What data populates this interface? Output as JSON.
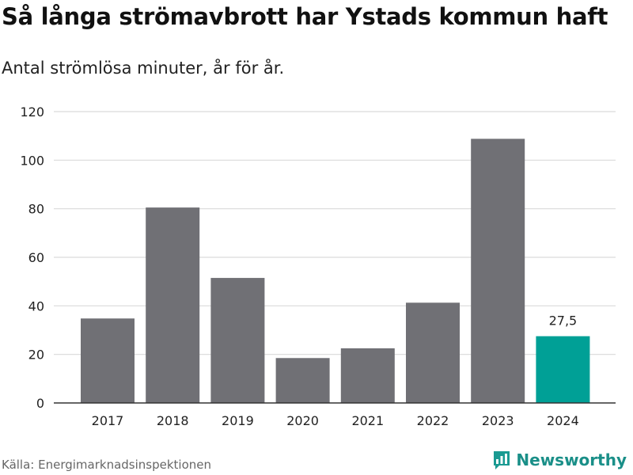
{
  "title": "Så långa strömavbrott har Ystads kommun haft",
  "subtitle": "Antal strömlösa minuter, år för år.",
  "source": "Källa: Energimarknadsinspektionen",
  "brand": {
    "name": "Newsworthy",
    "icon": "newsworthy-logo-icon",
    "color": "#1a9a92"
  },
  "colors": {
    "default_bar": "#707075",
    "highlight_bar": "#00a096",
    "grid": "#d9d9d9",
    "axis": "#333333"
  },
  "chart_data": {
    "type": "bar",
    "categories": [
      "2017",
      "2018",
      "2019",
      "2020",
      "2021",
      "2022",
      "2023",
      "2024"
    ],
    "values": [
      34.8,
      80.5,
      51.5,
      18.5,
      22.5,
      41.3,
      108.8,
      27.5
    ],
    "highlight_index": 7,
    "data_labels": [
      {
        "index": 7,
        "text": "27,5"
      }
    ],
    "ylim": [
      0,
      120
    ],
    "yticks": [
      0,
      20,
      40,
      60,
      80,
      100,
      120
    ],
    "grid": true,
    "xlabel": "",
    "ylabel": ""
  }
}
